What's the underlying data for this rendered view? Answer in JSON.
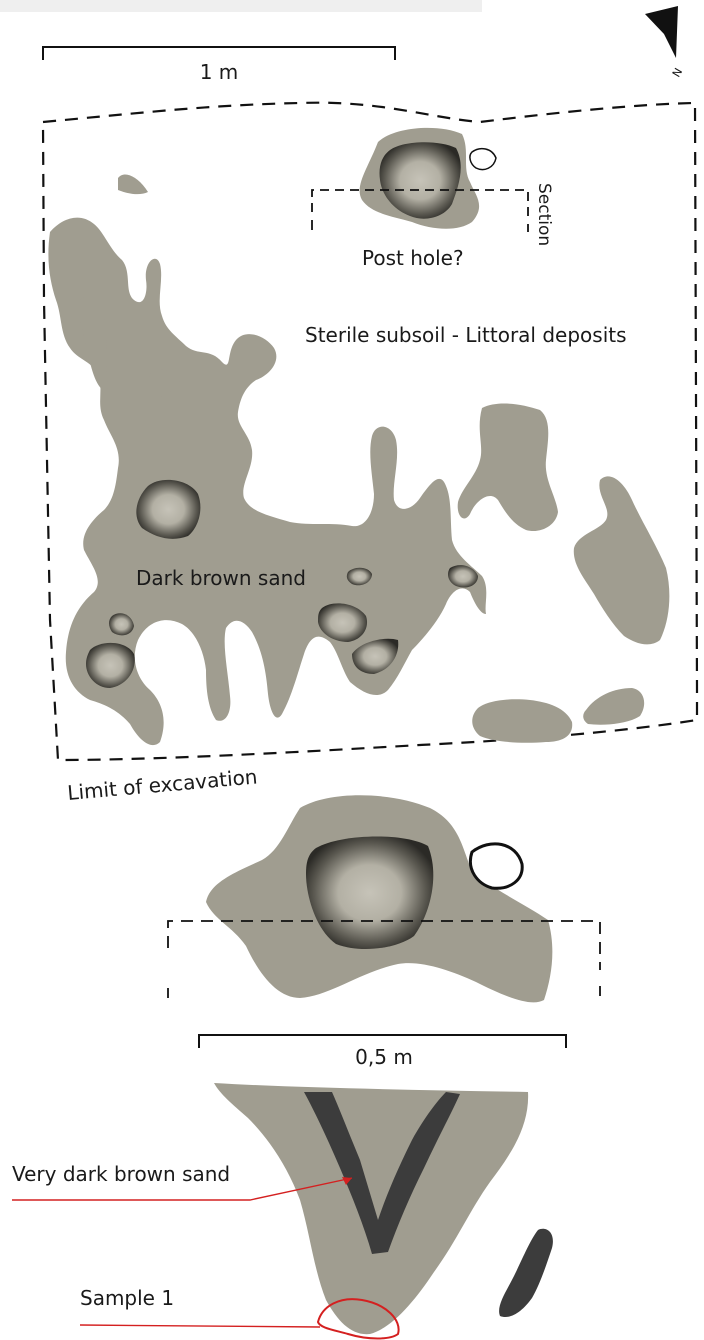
{
  "colors": {
    "feature_fill": "#a09d90",
    "pit_dark": "#3a3a35",
    "pit_light": "#c4c1b6",
    "fill_dark": "#3c3c3c",
    "line": "#111111",
    "callout": "#d42020",
    "header_strip": "#efefef"
  },
  "icons": {
    "north_arrow": "north-arrow-icon"
  },
  "north_label": "N",
  "plan": {
    "scale_label": "1 m",
    "post_hole_label": "Post hole?",
    "section_label": "Section",
    "subsoil_label": "Sterile subsoil - Littoral deposits",
    "sand_label": "Dark brown sand",
    "limit_label": "Limit of excavation"
  },
  "detail": {
    "scale_label": "0,5 m"
  },
  "section": {
    "dark_fill_label": "Very dark brown sand",
    "sample_label": "Sample 1"
  }
}
